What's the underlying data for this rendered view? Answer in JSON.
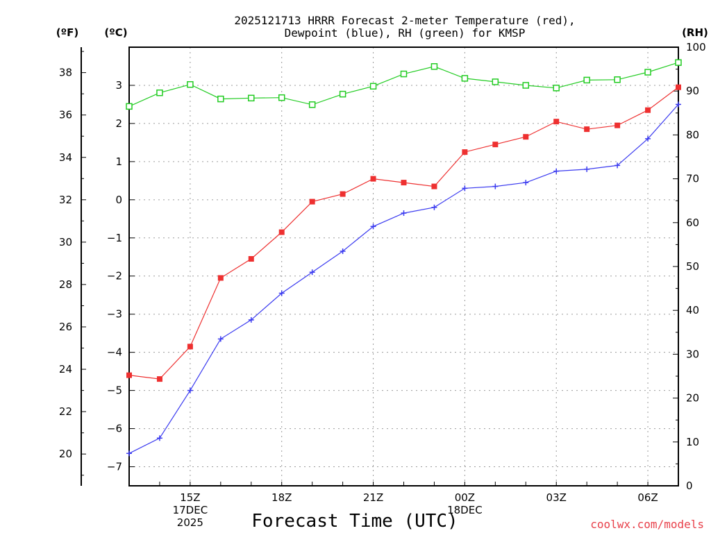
{
  "chart_data": {
    "type": "line",
    "title": "2025121713 HRRR Forecast 2-meter Temperature (red),",
    "subtitle": "Dewpoint (blue), RH (green) for KMSP",
    "xlabel": "Forecast Time (UTC)",
    "credit": "coolwx.com/models",
    "units": {
      "left_f": "(ºF)",
      "left_c": "(ºC)",
      "right_rh": "(RH)"
    },
    "x_hours": [
      13,
      14,
      15,
      16,
      17,
      18,
      19,
      20,
      21,
      22,
      23,
      24,
      25,
      26,
      27,
      28,
      29,
      30,
      31
    ],
    "x_ticks": [
      {
        "hour": 15,
        "lines": [
          "15Z",
          "17DEC",
          "2025"
        ]
      },
      {
        "hour": 18,
        "lines": [
          "18Z"
        ]
      },
      {
        "hour": 21,
        "lines": [
          "21Z"
        ]
      },
      {
        "hour": 24,
        "lines": [
          "00Z",
          "18DEC"
        ]
      },
      {
        "hour": 27,
        "lines": [
          "03Z"
        ]
      },
      {
        "hour": 30,
        "lines": [
          "06Z"
        ]
      }
    ],
    "c_axis": {
      "min": -7.5,
      "max": 4.0,
      "ticks": [
        -7,
        -6,
        -5,
        -4,
        -3,
        -2,
        -1,
        0,
        1,
        2,
        3
      ]
    },
    "f_ticks": [
      20,
      22,
      24,
      26,
      28,
      30,
      32,
      34,
      36,
      38
    ],
    "rh_axis": {
      "min": 0,
      "max": 100,
      "ticks": [
        0,
        10,
        20,
        30,
        40,
        50,
        60,
        70,
        80,
        90,
        100
      ]
    },
    "series": [
      {
        "name": "Temperature",
        "unit": "C",
        "color": "#ee3030",
        "marker": "filled-square",
        "values": [
          -4.6,
          -4.7,
          -3.85,
          -2.05,
          -1.55,
          -0.85,
          -0.05,
          0.15,
          0.55,
          0.45,
          0.35,
          1.25,
          1.45,
          1.65,
          2.05,
          1.85,
          1.95,
          2.35,
          2.95
        ]
      },
      {
        "name": "Dewpoint",
        "unit": "C",
        "color": "#3a3af0",
        "marker": "plus",
        "values": [
          -6.65,
          -6.25,
          -5.0,
          -3.65,
          -3.15,
          -2.45,
          -1.9,
          -1.35,
          -0.7,
          -0.35,
          -0.2,
          0.3,
          0.35,
          0.45,
          0.75,
          0.8,
          0.9,
          1.6,
          2.5
        ]
      },
      {
        "name": "RH",
        "unit": "%",
        "color": "#22cc22",
        "marker": "open-square",
        "values": [
          86.5,
          89.6,
          91.5,
          88.2,
          88.4,
          88.5,
          86.9,
          89.3,
          91.1,
          93.9,
          95.6,
          92.9,
          92.1,
          91.3,
          90.7,
          92.5,
          92.6,
          94.3,
          96.5
        ]
      }
    ]
  }
}
